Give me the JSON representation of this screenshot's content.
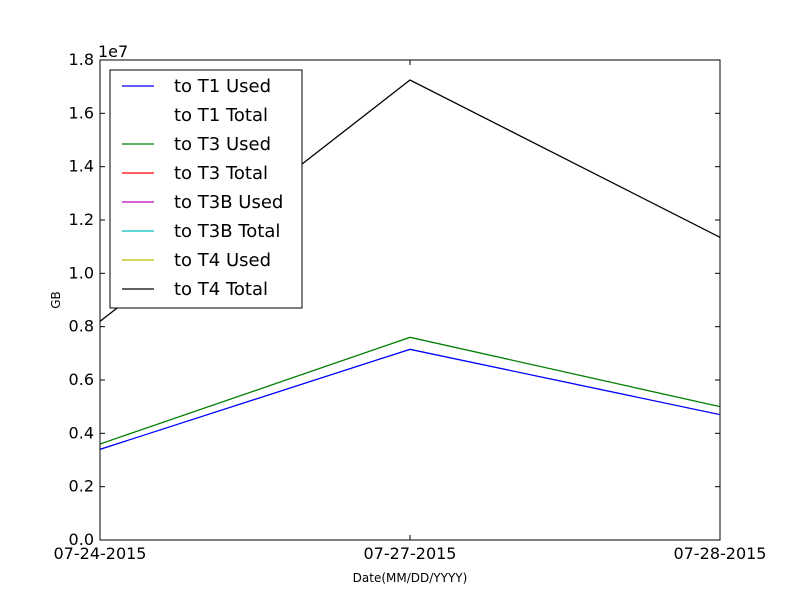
{
  "chart_data": {
    "type": "line",
    "title": "",
    "xlabel": "Date(MM/DD/YYYY)",
    "ylabel": "GB",
    "offset_label": "1e7",
    "categories": [
      "07-24-2015",
      "07-27-2015",
      "07-28-2015"
    ],
    "ylim": [
      0,
      18000000
    ],
    "yticks": [
      0,
      2000000,
      4000000,
      6000000,
      8000000,
      10000000,
      12000000,
      14000000,
      16000000,
      18000000
    ],
    "ytick_labels": [
      "0.0",
      "0.2",
      "0.4",
      "0.6",
      "0.8",
      "1.0",
      "1.2",
      "1.4",
      "1.6",
      "1.8"
    ],
    "grid": false,
    "legend_position": "upper-left",
    "series": [
      {
        "name": "to T1 Used",
        "color": "#0000ff",
        "values": [
          3400000,
          7150000,
          4700000
        ]
      },
      {
        "name": "to T1 Total",
        "color": "#ffffff",
        "values": [
          null,
          null,
          null
        ]
      },
      {
        "name": "to T3 Used",
        "color": "#008000",
        "values": [
          3600000,
          7600000,
          5000000
        ]
      },
      {
        "name": "to T3 Total",
        "color": "#ff0000",
        "values": [
          null,
          null,
          null
        ]
      },
      {
        "name": "to T3B Used",
        "color": "#bf00bf",
        "values": [
          null,
          null,
          null
        ]
      },
      {
        "name": "to T3B Total",
        "color": "#00bfbf",
        "values": [
          null,
          null,
          null
        ]
      },
      {
        "name": "to T4 Used",
        "color": "#bfbf00",
        "values": [
          null,
          null,
          null
        ]
      },
      {
        "name": "to T4 Total",
        "color": "#000000",
        "values": [
          8200000,
          17250000,
          11350000
        ]
      }
    ]
  }
}
